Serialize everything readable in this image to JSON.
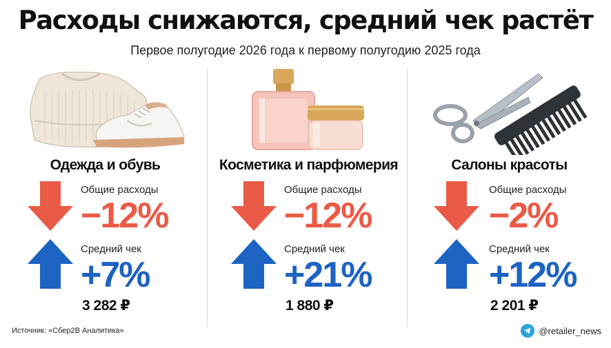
{
  "title": "Расходы снижаются, средний чек растёт",
  "subtitle": "Первое полугодие 2026 года к первому полугодию 2025 года",
  "colors": {
    "down_arrow": "#ea5b47",
    "up_arrow": "#1d63c2",
    "divider": "#d9d9d9"
  },
  "categories": [
    {
      "name": "Одежда и обувь",
      "illustration": "sweater-and-sneaker-icon",
      "total_label": "Общие расходы",
      "total_change": "−12%",
      "avg_label": "Средний чек",
      "avg_change": "+7%",
      "avg_check": "3 282 ₽"
    },
    {
      "name": "Косметика и парфюмерия",
      "illustration": "perfume-and-cream-jar-icon",
      "total_label": "Общие расходы",
      "total_change": "−12%",
      "avg_label": "Средний чек",
      "avg_change": "+21%",
      "avg_check": "1 880 ₽"
    },
    {
      "name": "Салоны красоты",
      "illustration": "scissors-and-comb-icon",
      "total_label": "Общие расходы",
      "total_change": "−2%",
      "avg_label": "Средний чек",
      "avg_change": "+12%",
      "avg_check": "2 201 ₽"
    }
  ],
  "footer": {
    "source": "Источник: «Сбер2В Аналитика»",
    "social_icon": "telegram-icon",
    "handle": "@retailer_news"
  }
}
